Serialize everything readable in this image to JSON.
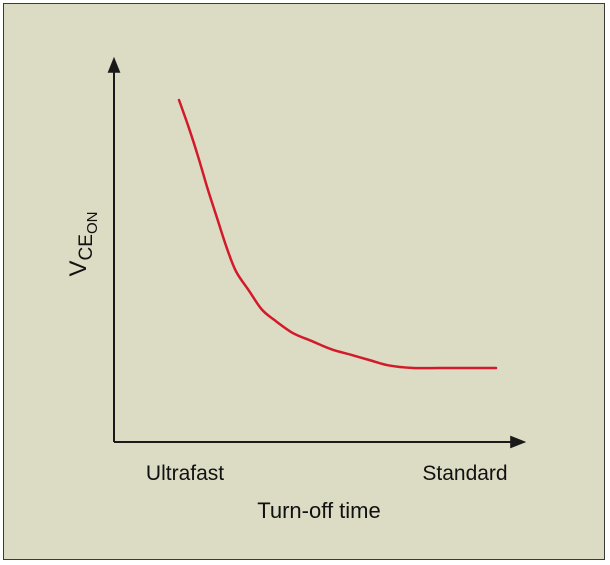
{
  "chart_data": {
    "type": "line",
    "title": "",
    "xlabel": "Turn-off time",
    "ylabel": {
      "main": "V",
      "sub": "CE",
      "subsub": "ON"
    },
    "x_tick_labels": [
      "Ultrafast",
      "Standard"
    ],
    "grid": false,
    "legend": "none",
    "series": [
      {
        "color": "#d21a2a",
        "x": [
          0.0,
          0.03,
          0.06,
          0.09,
          0.12,
          0.15,
          0.18,
          0.22,
          0.26,
          0.3,
          0.36,
          0.42,
          0.48,
          0.54,
          0.6,
          0.66,
          0.74,
          0.82,
          0.9,
          1.0
        ],
        "y": [
          1.0,
          0.9,
          0.79,
          0.67,
          0.56,
          0.45,
          0.36,
          0.29,
          0.22,
          0.18,
          0.13,
          0.1,
          0.07,
          0.05,
          0.03,
          0.01,
          0.0,
          0.0,
          0.0,
          0.0
        ]
      }
    ],
    "colors": {
      "background": "#dcdbc4",
      "axis": "#1a1a1a",
      "curve": "#d21a2a"
    }
  }
}
